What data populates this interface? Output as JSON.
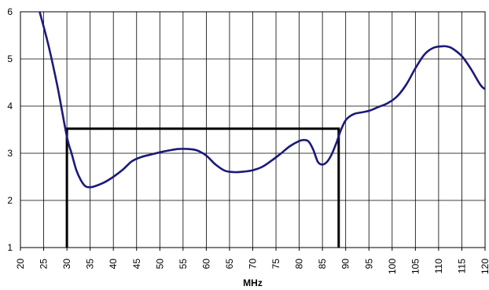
{
  "chart_data": {
    "type": "line",
    "title": "",
    "xlabel": "MHz",
    "ylabel": "",
    "xlim": [
      20,
      120
    ],
    "ylim": [
      1,
      6
    ],
    "x_ticks": [
      20,
      25,
      30,
      35,
      40,
      45,
      50,
      55,
      60,
      65,
      70,
      75,
      80,
      85,
      90,
      95,
      100,
      105,
      110,
      115,
      120
    ],
    "y_ticks": [
      1,
      2,
      3,
      4,
      5,
      6
    ],
    "grid": true,
    "legend": "none",
    "colors": {
      "curve": "#1a1a7a",
      "mask": "#000000",
      "grid": "#000000"
    },
    "series": [
      {
        "x": [
          24,
          26,
          28,
          30,
          31,
          32,
          33,
          34,
          35,
          36,
          38,
          40,
          42,
          44,
          46,
          48,
          50,
          52,
          54,
          56,
          58,
          60,
          62,
          64,
          66,
          68,
          70,
          72,
          74,
          76,
          78,
          80,
          81,
          82,
          83,
          84,
          85,
          86,
          87,
          88,
          89,
          90,
          91,
          92,
          93,
          95,
          97,
          99,
          101,
          103,
          105,
          107,
          109,
          111,
          112,
          113,
          115,
          117,
          119,
          120
        ],
        "y": [
          6.05,
          5.3,
          4.4,
          3.35,
          3.0,
          2.65,
          2.43,
          2.3,
          2.28,
          2.3,
          2.38,
          2.5,
          2.65,
          2.83,
          2.92,
          2.97,
          3.02,
          3.06,
          3.09,
          3.09,
          3.06,
          2.95,
          2.76,
          2.63,
          2.6,
          2.61,
          2.64,
          2.71,
          2.84,
          2.99,
          3.15,
          3.26,
          3.28,
          3.25,
          3.08,
          2.82,
          2.76,
          2.82,
          2.98,
          3.22,
          3.5,
          3.7,
          3.79,
          3.84,
          3.86,
          3.9,
          3.98,
          4.06,
          4.2,
          4.45,
          4.8,
          5.1,
          5.24,
          5.27,
          5.26,
          5.22,
          5.06,
          4.78,
          4.45,
          4.36
        ]
      },
      {
        "x": [
          30,
          30,
          88.5,
          88.5
        ],
        "y": [
          1,
          3.52,
          3.52,
          1
        ]
      }
    ]
  }
}
